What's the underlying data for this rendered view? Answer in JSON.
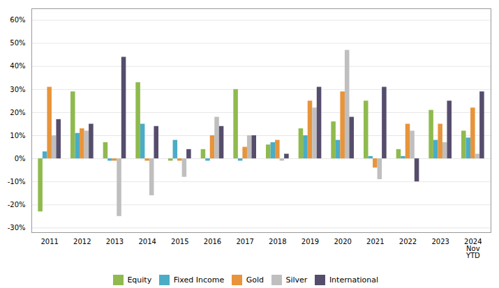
{
  "chart_data": {
    "type": "bar",
    "categories": [
      "2011",
      "2012",
      "2013",
      "2014",
      "2015",
      "2016",
      "2017",
      "2018",
      "2019",
      "2020",
      "2021",
      "2022",
      "2023",
      "2024\nNov\nYTD"
    ],
    "series": [
      {
        "name": "Equity",
        "color": "#8fba4e",
        "values": [
          -0.23,
          0.29,
          0.07,
          0.33,
          -0.01,
          0.04,
          0.3,
          0.06,
          0.13,
          0.16,
          0.25,
          0.04,
          0.21,
          0.12
        ]
      },
      {
        "name": "Fixed Income",
        "color": "#4bacc6",
        "values": [
          0.03,
          0.11,
          -0.01,
          0.15,
          0.08,
          -0.01,
          -0.01,
          0.07,
          0.1,
          0.08,
          0.01,
          0.01,
          0.08,
          0.09
        ]
      },
      {
        "name": "Gold",
        "color": "#e8943a",
        "values": [
          0.31,
          0.13,
          -0.01,
          -0.01,
          -0.01,
          0.1,
          0.05,
          0.08,
          0.25,
          0.29,
          -0.04,
          0.15,
          0.15,
          0.22
        ]
      },
      {
        "name": "Silver",
        "color": "#bfbfbf",
        "values": [
          0.1,
          0.12,
          -0.25,
          -0.16,
          -0.08,
          0.18,
          0.1,
          -0.01,
          0.22,
          0.47,
          -0.09,
          0.12,
          0.07,
          0.02
        ]
      },
      {
        "name": "International",
        "color": "#564d6d",
        "values": [
          0.17,
          0.15,
          0.44,
          0.14,
          0.04,
          0.14,
          0.1,
          0.02,
          0.31,
          0.18,
          0.31,
          -0.1,
          0.25,
          0.29
        ]
      }
    ],
    "ylim": [
      -0.32,
      0.65
    ],
    "yticks": [
      {
        "value": -0.3,
        "label": "-30%"
      },
      {
        "value": -0.2,
        "label": "-20%"
      },
      {
        "value": -0.1,
        "label": "-10%"
      },
      {
        "value": 0.0,
        "label": "0%"
      },
      {
        "value": 0.1,
        "label": "10%"
      },
      {
        "value": 0.2,
        "label": "20%"
      },
      {
        "value": 0.3,
        "label": "30%"
      },
      {
        "value": 0.4,
        "label": "40%"
      },
      {
        "value": 0.5,
        "label": "50%"
      },
      {
        "value": 0.6,
        "label": "60%"
      }
    ],
    "grid": true,
    "legend": "bottom"
  }
}
